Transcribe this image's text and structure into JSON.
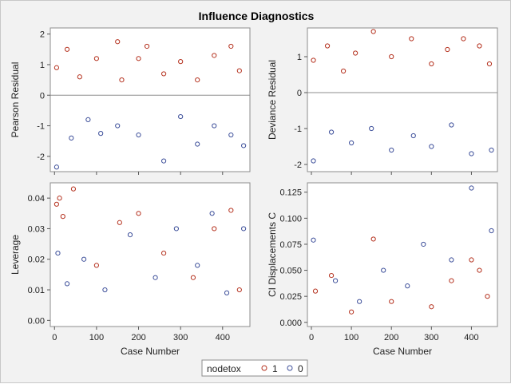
{
  "chart_data": {
    "type": "scatter",
    "title": "Influence Diagnostics",
    "xlabel": "Case Number",
    "xlim": [
      -10,
      465
    ],
    "xticks": [
      0,
      100,
      200,
      300,
      400
    ],
    "xtick_labels": [
      "0",
      "100",
      "200",
      "300",
      "400"
    ],
    "legend": {
      "title": "nodetox",
      "position": "bottom",
      "entries": [
        {
          "label": "1",
          "color": "#b5321f"
        },
        {
          "label": "0",
          "color": "#3d4f9a"
        }
      ]
    },
    "panels": [
      {
        "id": "pearson-residual",
        "ylabel": "Pearson Residual",
        "ylim": [
          -2.5,
          2.2
        ],
        "yticks": [
          -2,
          -1,
          0,
          1,
          2
        ],
        "ytick_labels": [
          "-2",
          "-1",
          "0",
          "1",
          "2"
        ],
        "reference_line": 0,
        "series": [
          {
            "name": "1",
            "x": [
              5,
              30,
              60,
              100,
              150,
              160,
              200,
              220,
              260,
              300,
              340,
              380,
              420,
              440
            ],
            "y": [
              0.9,
              1.5,
              0.6,
              1.2,
              1.75,
              0.5,
              1.2,
              1.6,
              0.7,
              1.1,
              0.5,
              1.3,
              1.6,
              0.8
            ]
          },
          {
            "name": "0",
            "x": [
              5,
              40,
              80,
              110,
              150,
              200,
              260,
              300,
              340,
              380,
              420,
              450
            ],
            "y": [
              -2.35,
              -1.4,
              -0.8,
              -1.25,
              -1.0,
              -1.3,
              -2.15,
              -0.7,
              -1.6,
              -1.0,
              -1.3,
              -1.65
            ]
          }
        ]
      },
      {
        "id": "deviance-residual",
        "ylabel": "Deviance Residual",
        "ylim": [
          -2.2,
          1.8
        ],
        "yticks": [
          -2,
          -1,
          0,
          1
        ],
        "ytick_labels": [
          "-2",
          "-1",
          "0",
          "1"
        ],
        "reference_line": 0,
        "series": [
          {
            "name": "1",
            "x": [
              5,
              40,
              80,
              110,
              155,
              200,
              250,
              300,
              340,
              380,
              420,
              445
            ],
            "y": [
              0.9,
              1.3,
              0.6,
              1.1,
              1.7,
              1.0,
              1.5,
              0.8,
              1.2,
              1.5,
              1.3,
              0.8
            ]
          },
          {
            "name": "0",
            "x": [
              5,
              50,
              100,
              150,
              200,
              255,
              300,
              350,
              400,
              450
            ],
            "y": [
              -1.9,
              -1.1,
              -1.4,
              -1.0,
              -1.6,
              -1.2,
              -1.5,
              -0.9,
              -1.7,
              -1.6
            ]
          }
        ]
      },
      {
        "id": "leverage",
        "ylabel": "Leverage",
        "ylim": [
          -0.002,
          0.045
        ],
        "yticks": [
          0.0,
          0.01,
          0.02,
          0.03,
          0.04
        ],
        "ytick_labels": [
          "0.00",
          "0.01",
          "0.02",
          "0.03",
          "0.04"
        ],
        "series": [
          {
            "name": "1",
            "x": [
              5,
              12,
              20,
              45,
              100,
              155,
              200,
              260,
              330,
              380,
              420,
              440
            ],
            "y": [
              0.038,
              0.04,
              0.034,
              0.043,
              0.018,
              0.032,
              0.035,
              0.022,
              0.014,
              0.03,
              0.036,
              0.01
            ]
          },
          {
            "name": "0",
            "x": [
              8,
              30,
              70,
              120,
              180,
              240,
              290,
              340,
              375,
              410,
              450
            ],
            "y": [
              0.022,
              0.012,
              0.02,
              0.01,
              0.028,
              0.014,
              0.03,
              0.018,
              0.035,
              0.009,
              0.03
            ]
          }
        ]
      },
      {
        "id": "ci-displacements-c",
        "ylabel": "CI Displacements C",
        "ylim": [
          -0.004,
          0.134
        ],
        "yticks": [
          0.0,
          0.025,
          0.05,
          0.075,
          0.1,
          0.125
        ],
        "ytick_labels": [
          "0.000",
          "0.025",
          "0.050",
          "0.075",
          "0.100",
          "0.125"
        ],
        "series": [
          {
            "name": "1",
            "x": [
              10,
              50,
              100,
              155,
              200,
              300,
              350,
              400,
              420,
              440
            ],
            "y": [
              0.03,
              0.045,
              0.01,
              0.08,
              0.02,
              0.015,
              0.04,
              0.06,
              0.05,
              0.025
            ]
          },
          {
            "name": "0",
            "x": [
              5,
              60,
              120,
              180,
              240,
              280,
              350,
              400,
              450
            ],
            "y": [
              0.079,
              0.04,
              0.02,
              0.05,
              0.035,
              0.075,
              0.06,
              0.129,
              0.088
            ]
          }
        ]
      }
    ]
  }
}
